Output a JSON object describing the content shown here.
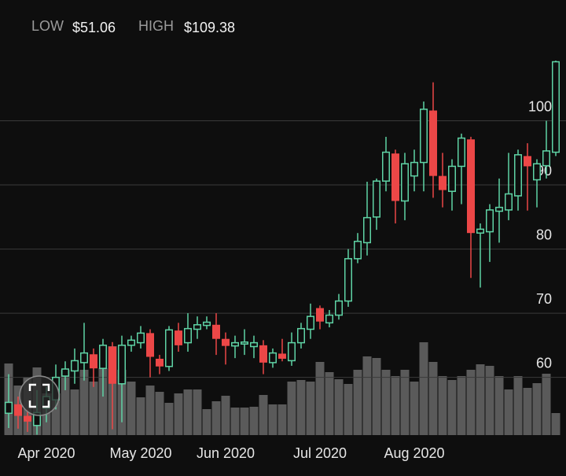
{
  "chart_data": {
    "type": "candlestick",
    "stats": [
      {
        "label": "LOW",
        "value": "$51.06"
      },
      {
        "label": "HIGH",
        "value": "$109.38"
      }
    ],
    "categories": [
      null,
      null,
      null,
      null,
      "Apr 2020",
      null,
      null,
      null,
      null,
      null,
      null,
      null,
      null,
      null,
      "May 2020",
      null,
      null,
      null,
      null,
      null,
      null,
      null,
      null,
      "Jun 2020",
      null,
      null,
      null,
      null,
      null,
      null,
      null,
      null,
      null,
      "Jul 2020",
      null,
      null,
      null,
      null,
      null,
      null,
      null,
      null,
      null,
      "Aug 2020",
      null,
      null,
      null,
      null,
      null,
      null,
      null,
      null,
      null,
      null,
      null,
      null,
      null,
      null,
      null
    ],
    "open": [
      54.4,
      55.8,
      54,
      52.5,
      55.2,
      56.5,
      60.2,
      61,
      62.3,
      63.6,
      61.4,
      64.8,
      59,
      65,
      65.4,
      66.9,
      62.9,
      61.7,
      67.3,
      65.4,
      67.5,
      68.1,
      68.2,
      66,
      64.9,
      65.2,
      64.8,
      65,
      62.3,
      63.7,
      62.6,
      65.4,
      67.5,
      70.8,
      68.5,
      69.7,
      71.9,
      78.5,
      81,
      85,
      90.6,
      94.9,
      87.5,
      91.4,
      93.5,
      101.6,
      91.4,
      89,
      92.9,
      97.1,
      82.5,
      82.7,
      85.9,
      86.1,
      88.3,
      94.5,
      90.8,
      93,
      95.1
    ],
    "high": [
      60.5,
      57,
      55,
      58,
      58.5,
      62,
      62.5,
      64.5,
      68.5,
      64.5,
      66,
      65.5,
      66.5,
      66.5,
      68,
      67.5,
      63.5,
      68,
      68.5,
      70,
      69.5,
      69.5,
      70,
      67,
      66.5,
      67.5,
      66.5,
      65.8,
      64.5,
      66,
      67,
      68.5,
      71.5,
      71.2,
      70.5,
      73,
      80,
      82.5,
      90.5,
      91,
      97.5,
      95.5,
      95,
      95.5,
      103,
      106,
      95,
      94,
      98,
      97.5,
      84,
      87,
      91,
      95,
      95.5,
      96.5,
      94,
      100,
      109.38
    ],
    "low": [
      52.1,
      52,
      51.5,
      51.06,
      53,
      55,
      58,
      59,
      59.5,
      58.5,
      57,
      51.9,
      53,
      64,
      64.5,
      60,
      60.5,
      61,
      64,
      64,
      66,
      67.5,
      63.5,
      62,
      63,
      63.5,
      63,
      60.5,
      61.5,
      62.5,
      61.8,
      64.5,
      66,
      67.5,
      67.8,
      69,
      71,
      77.8,
      79,
      83,
      89,
      84,
      84.5,
      89,
      89,
      88,
      86.5,
      86,
      87,
      75.5,
      74,
      78,
      81,
      84.5,
      86,
      86,
      86.5,
      91,
      94.5
    ],
    "close": [
      56.1,
      54,
      53.1,
      54.5,
      57,
      60,
      61.3,
      62.6,
      63.8,
      61.4,
      65,
      59,
      65,
      65.8,
      66.9,
      63.2,
      61.7,
      67.4,
      65,
      67.6,
      68.2,
      68.6,
      66,
      64.9,
      65.4,
      65.5,
      65.4,
      62.3,
      63.8,
      62.9,
      65.4,
      67.6,
      69.5,
      68.7,
      69.7,
      71.9,
      78.5,
      81.2,
      84.9,
      90.6,
      95.1,
      87.5,
      93.3,
      93.5,
      101.8,
      91.4,
      89.2,
      92.9,
      97.3,
      82.5,
      83.1,
      86.1,
      86.5,
      88.6,
      94.7,
      92.9,
      93.3,
      95.3,
      109.2
    ],
    "volume": [
      91,
      63,
      73,
      86,
      53,
      53,
      83,
      58,
      83,
      68,
      85,
      113,
      83,
      68,
      48,
      63,
      55,
      41,
      53,
      58,
      58,
      33,
      43,
      50,
      35,
      35,
      36,
      51,
      39,
      39,
      68,
      70,
      68,
      93,
      80,
      71,
      65,
      83,
      100,
      98,
      83,
      75,
      83,
      68,
      118,
      93,
      75,
      70,
      75,
      83,
      90,
      88,
      75,
      58,
      75,
      60,
      66,
      78,
      28
    ],
    "up_color": "#5fd3a5",
    "down_color": "#ec4747",
    "volume_color": "#5a5a5a",
    "ylim": [
      51,
      110
    ],
    "yticks": [
      60,
      70,
      80,
      90,
      100
    ],
    "grid": true
  }
}
